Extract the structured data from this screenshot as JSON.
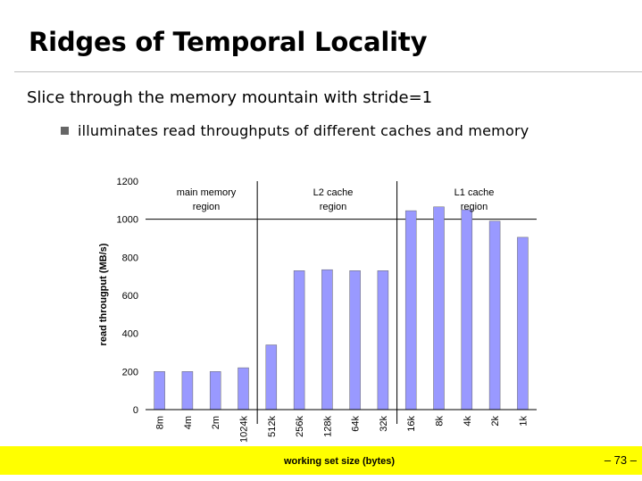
{
  "slide": {
    "title": "Ridges of Temporal Locality",
    "subtitle": "Slice through the memory mountain with stride=1",
    "bullet": "illuminates read throughputs of different caches and memory",
    "page_number": "– 73 –",
    "footer_color": "#ffff00"
  },
  "chart_data": {
    "type": "bar",
    "ylabel": "read througput (MB/s)",
    "xlabel": "working set size (bytes)",
    "categories": [
      "8m",
      "4m",
      "2m",
      "1024k",
      "512k",
      "256k",
      "128k",
      "64k",
      "32k",
      "16k",
      "8k",
      "4k",
      "2k",
      "1k"
    ],
    "values": [
      200,
      200,
      200,
      220,
      340,
      730,
      735,
      730,
      730,
      1045,
      1065,
      1050,
      990,
      905
    ],
    "ylim": [
      0,
      1200
    ],
    "yticks": [
      0,
      200,
      400,
      600,
      800,
      1000,
      1200
    ],
    "grid": "y=1000 only",
    "bar_color": "#9999ff",
    "annotations": [
      {
        "text_line1": "main memory",
        "text_line2": "region"
      },
      {
        "text_line1": "L2 cache",
        "text_line2": "region"
      },
      {
        "text_line1": "L1 cache",
        "text_line2": "region"
      }
    ]
  }
}
